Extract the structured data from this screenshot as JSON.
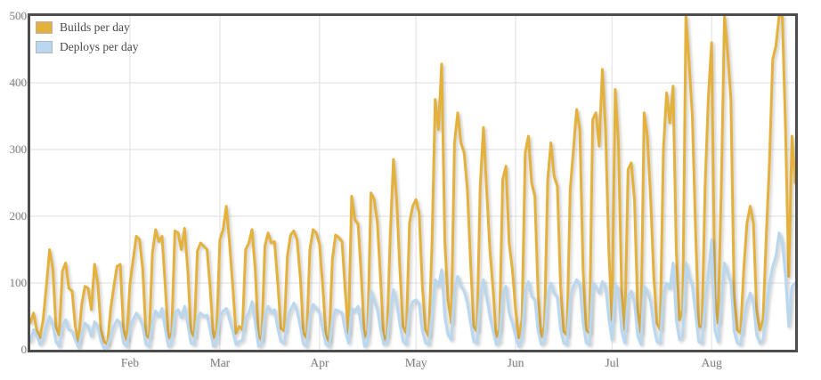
{
  "legend": {
    "items": [
      {
        "label": "Builds per day",
        "color": "#e5b13d"
      },
      {
        "label": "Deploys per day",
        "color": "#b9d8f0"
      }
    ]
  },
  "colors": {
    "frame": "#4d4d4d",
    "grid": "#dedede",
    "tick_text": "#848484",
    "background": "#ffffff"
  },
  "chart_data": {
    "type": "line",
    "title": "",
    "xlabel": "",
    "ylabel": "",
    "grid": true,
    "legend_position": "top-left",
    "x_axis": {
      "unit": "day",
      "total_days": 239,
      "tick_labels": [
        "Feb",
        "Mar",
        "Apr",
        "May",
        "Jun",
        "Jul",
        "Aug"
      ],
      "months": [
        {
          "label": "Feb",
          "start_day": 31
        },
        {
          "label": "Mar",
          "start_day": 59
        },
        {
          "label": "Apr",
          "start_day": 90
        },
        {
          "label": "May",
          "start_day": 120
        },
        {
          "label": "Jun",
          "start_day": 151
        },
        {
          "label": "Jul",
          "start_day": 181
        },
        {
          "label": "Aug",
          "start_day": 212
        }
      ]
    },
    "y_axis": {
      "min": 0,
      "max": 500,
      "ticks": [
        0,
        100,
        200,
        300,
        400,
        500
      ]
    },
    "series": [
      {
        "name": "Builds per day",
        "color": "#e5b13d",
        "values": [
          40,
          55,
          30,
          18,
          45,
          95,
          150,
          122,
          35,
          22,
          118,
          130,
          92,
          88,
          35,
          12,
          68,
          95,
          92,
          60,
          128,
          100,
          30,
          12,
          8,
          60,
          95,
          125,
          128,
          30,
          15,
          98,
          135,
          170,
          165,
          120,
          22,
          18,
          145,
          180,
          162,
          170,
          95,
          18,
          25,
          178,
          175,
          150,
          182,
          120,
          28,
          20,
          148,
          160,
          155,
          150,
          90,
          18,
          30,
          165,
          180,
          215,
          160,
          95,
          25,
          35,
          30,
          150,
          160,
          180,
          120,
          20,
          15,
          155,
          175,
          160,
          162,
          100,
          32,
          28,
          140,
          172,
          178,
          165,
          110,
          25,
          18,
          150,
          180,
          175,
          158,
          95,
          22,
          12,
          135,
          172,
          168,
          162,
          88,
          25,
          230,
          195,
          188,
          110,
          20,
          28,
          235,
          225,
          190,
          105,
          15,
          22,
          170,
          285,
          225,
          120,
          35,
          25,
          190,
          215,
          225,
          205,
          95,
          30,
          20,
          160,
          375,
          330,
          428,
          160,
          75,
          40,
          310,
          355,
          310,
          295,
          240,
          130,
          35,
          28,
          245,
          333,
          240,
          150,
          90,
          20,
          30,
          255,
          275,
          160,
          120,
          60,
          18,
          45,
          295,
          320,
          250,
          230,
          85,
          20,
          35,
          255,
          310,
          260,
          245,
          95,
          28,
          22,
          240,
          300,
          360,
          330,
          120,
          30,
          25,
          345,
          355,
          305,
          420,
          330,
          150,
          45,
          390,
          310,
          90,
          30,
          270,
          280,
          225,
          60,
          25,
          355,
          320,
          230,
          110,
          40,
          30,
          300,
          385,
          340,
          395,
          150,
          45,
          60,
          500,
          430,
          350,
          180,
          35,
          35,
          250,
          380,
          460,
          80,
          40,
          240,
          500,
          445,
          375,
          82,
          30,
          25,
          120,
          190,
          215,
          190,
          60,
          30,
          45,
          170,
          280,
          435,
          455,
          500,
          500,
          330,
          110,
          320,
          250
        ]
      },
      {
        "name": "Deploys per day",
        "color": "#b9d8f0",
        "values": [
          12,
          30,
          22,
          8,
          15,
          35,
          50,
          38,
          12,
          5,
          35,
          45,
          30,
          28,
          15,
          3,
          25,
          40,
          35,
          20,
          42,
          35,
          12,
          2,
          5,
          20,
          35,
          45,
          40,
          10,
          5,
          30,
          45,
          55,
          48,
          35,
          8,
          5,
          42,
          58,
          50,
          62,
          30,
          5,
          10,
          55,
          60,
          48,
          65,
          38,
          10,
          8,
          48,
          55,
          50,
          52,
          28,
          5,
          12,
          50,
          58,
          62,
          45,
          28,
          8,
          12,
          15,
          48,
          55,
          72,
          40,
          5,
          8,
          52,
          65,
          55,
          60,
          32,
          12,
          10,
          45,
          60,
          70,
          58,
          35,
          8,
          5,
          52,
          68,
          62,
          55,
          30,
          8,
          5,
          45,
          60,
          58,
          55,
          28,
          10,
          62,
          58,
          65,
          35,
          5,
          12,
          88,
          75,
          60,
          30,
          8,
          10,
          55,
          90,
          70,
          38,
          12,
          8,
          60,
          72,
          75,
          68,
          28,
          10,
          8,
          55,
          105,
          95,
          120,
          48,
          22,
          15,
          90,
          110,
          95,
          88,
          70,
          40,
          12,
          10,
          80,
          105,
          78,
          50,
          28,
          8,
          12,
          85,
          95,
          55,
          40,
          20,
          5,
          15,
          90,
          102,
          80,
          75,
          28,
          8,
          12,
          82,
          100,
          85,
          78,
          30,
          10,
          8,
          78,
          95,
          105,
          98,
          40,
          10,
          8,
          100,
          95,
          85,
          102,
          95,
          48,
          15,
          98,
          90,
          28,
          10,
          80,
          88,
          70,
          20,
          8,
          95,
          88,
          72,
          35,
          12,
          10,
          85,
          100,
          92,
          130,
          45,
          15,
          20,
          130,
          110,
          95,
          55,
          12,
          10,
          75,
          115,
          165,
          30,
          12,
          70,
          130,
          115,
          100,
          28,
          10,
          8,
          45,
          70,
          85,
          70,
          22,
          10,
          15,
          60,
          100,
          125,
          140,
          175,
          160,
          110,
          35,
          95,
          100
        ]
      }
    ]
  }
}
